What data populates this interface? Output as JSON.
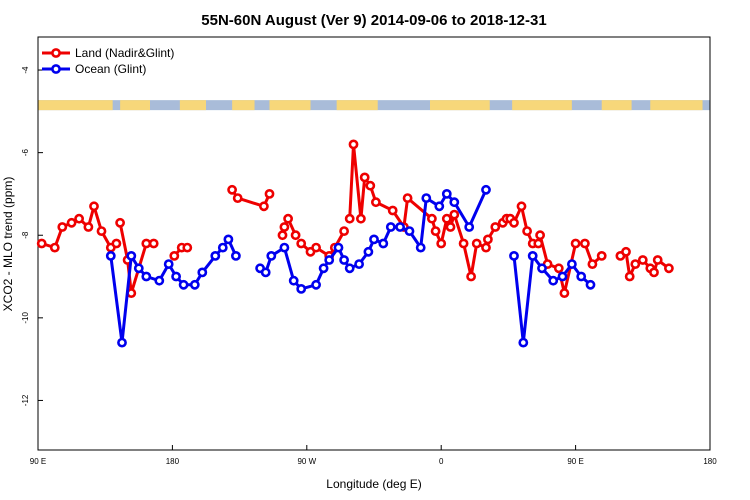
{
  "chart_data": {
    "type": "line",
    "title": "55N-60N August (Ver 9)   2014-09-06 to 2018-12-31",
    "xlabel": "Longitude (deg E)",
    "ylabel": "XCO2 - MLO trend (ppm)",
    "xlim": [
      90,
      450
    ],
    "ylim": [
      -13.2,
      -3.2
    ],
    "x_ticks": [
      90,
      162,
      234,
      306,
      378,
      450
    ],
    "x_tick_labels": [
      "90 E",
      "180",
      "90 W",
      "0",
      "90 E",
      "180"
    ],
    "y_ticks": [
      -4,
      -6,
      -8,
      -10,
      -12
    ],
    "y_tick_labels": [
      "-4",
      "-6",
      "-8",
      "-10",
      "-12"
    ],
    "legend_position": "top-left",
    "map_strip": {
      "y_center": -4.85,
      "land_color": "#f7d77a",
      "ocean_color": "#a9bcd9"
    },
    "series": [
      {
        "name": "Land (Nadir&Glint)",
        "color": "#ee0000",
        "x": [
          92,
          99,
          103,
          108,
          112,
          117,
          120,
          124,
          129,
          132,
          134,
          138,
          140,
          148,
          152,
          163,
          167,
          170,
          194,
          197,
          211,
          214,
          221,
          222,
          224,
          228,
          231,
          236,
          239,
          246,
          249,
          254,
          257,
          259,
          263,
          265,
          268,
          271,
          280,
          286,
          288,
          301,
          303,
          306,
          309,
          311,
          313,
          318,
          322,
          325,
          330,
          331,
          335,
          339,
          341,
          343,
          345,
          349,
          352,
          355,
          358,
          359,
          363,
          369,
          372,
          378,
          383,
          387,
          392,
          402,
          405,
          407,
          410,
          414,
          418,
          420,
          422,
          428
        ],
        "y": [
          -8.2,
          -8.3,
          -7.8,
          -7.7,
          -7.6,
          -7.8,
          -7.3,
          -7.9,
          -8.3,
          -8.2,
          -7.7,
          -8.6,
          -9.4,
          -8.2,
          -8.2,
          -8.5,
          -8.3,
          -8.3,
          -6.9,
          -7.1,
          -7.3,
          -7.0,
          -8.0,
          -7.8,
          -7.6,
          -8.0,
          -8.2,
          -8.4,
          -8.3,
          -8.5,
          -8.3,
          -7.9,
          -7.6,
          -5.8,
          -7.6,
          -6.6,
          -6.8,
          -7.2,
          -7.4,
          -7.8,
          -7.1,
          -7.6,
          -7.9,
          -8.2,
          -7.6,
          -7.8,
          -7.5,
          -8.2,
          -9.0,
          -8.2,
          -8.3,
          -8.1,
          -7.8,
          -7.7,
          -7.6,
          -7.6,
          -7.7,
          -7.3,
          -7.9,
          -8.2,
          -8.2,
          -8.0,
          -8.7,
          -8.8,
          -9.4,
          -8.2,
          -8.2,
          -8.7,
          -8.5,
          -8.5,
          -8.4,
          -9.0,
          -8.7,
          -8.6,
          -8.8,
          -8.9,
          -8.6,
          -8.8
        ],
        "segments": [
          [
            92,
            99,
            103,
            108,
            112,
            117,
            120,
            124,
            129,
            132
          ],
          [
            134,
            138,
            140,
            148,
            152
          ],
          [
            163,
            167,
            170
          ],
          [
            194,
            197,
            211,
            214
          ],
          [
            221,
            222,
            224,
            228
          ],
          [
            231,
            236,
            239,
            246,
            249,
            254
          ],
          [
            257,
            259,
            263,
            265,
            268,
            271,
            280,
            286,
            288,
            301,
            303,
            306,
            309,
            311,
            313,
            318,
            322,
            325,
            330,
            331,
            335,
            339,
            341,
            343,
            345,
            349,
            352,
            355,
            358,
            359,
            363,
            369,
            372,
            378
          ],
          [
            383,
            387,
            392
          ],
          [
            402,
            405,
            407,
            410,
            414,
            418,
            420,
            422,
            428
          ]
        ]
      },
      {
        "name": "Ocean (Glint)",
        "color": "#0000ee",
        "x": [
          129,
          135,
          140,
          144,
          148,
          155,
          160,
          164,
          168,
          174,
          178,
          185,
          189,
          192,
          196,
          209,
          212,
          215,
          222,
          227,
          231,
          239,
          243,
          246,
          251,
          254,
          257,
          262,
          267,
          270,
          275,
          279,
          284,
          289,
          295,
          298,
          305,
          309,
          313,
          321,
          330,
          345,
          350,
          355,
          360,
          366,
          371,
          376,
          381,
          386
        ],
        "y": [
          -8.5,
          -10.6,
          -8.5,
          -8.8,
          -9.0,
          -9.1,
          -8.7,
          -9.0,
          -9.2,
          -9.2,
          -8.9,
          -8.5,
          -8.3,
          -8.1,
          -8.5,
          -8.8,
          -8.9,
          -8.5,
          -8.3,
          -9.1,
          -9.3,
          -9.2,
          -8.8,
          -8.6,
          -8.3,
          -8.6,
          -8.8,
          -8.7,
          -8.4,
          -8.1,
          -8.2,
          -7.8,
          -7.8,
          -7.9,
          -8.3,
          -7.1,
          -7.3,
          -7.0,
          -7.2,
          -7.8,
          -6.9,
          -8.5,
          -10.6,
          -8.5,
          -8.8,
          -9.1,
          -9.0,
          -8.7,
          -9.0,
          -9.2
        ],
        "segments": [
          [
            129,
            135,
            140,
            144,
            148,
            155,
            160,
            164,
            168,
            174,
            178,
            185,
            189,
            192,
            196
          ],
          [
            209,
            212,
            215,
            222,
            227,
            231,
            239,
            243,
            246,
            251,
            254,
            257,
            262,
            267,
            270,
            275,
            279,
            284,
            289,
            295,
            298,
            305,
            309,
            313,
            321,
            330
          ],
          [
            345,
            350,
            355,
            360,
            366,
            371,
            376,
            381,
            386
          ]
        ]
      }
    ]
  }
}
